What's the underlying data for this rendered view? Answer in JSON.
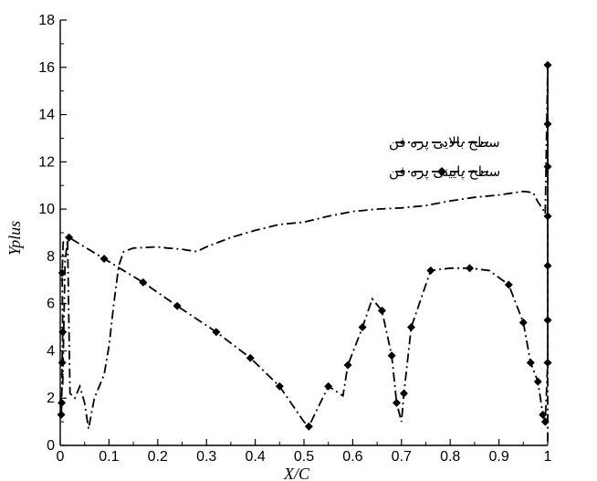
{
  "chart_data": {
    "type": "line",
    "title": "",
    "xlabel": "X/C",
    "ylabel": "Yplus",
    "xlim": [
      0,
      1
    ],
    "ylim": [
      0,
      18
    ],
    "xticks": [
      "0",
      "0.1",
      "0.2",
      "0.3",
      "0.4",
      "0.5",
      "0.6",
      "0.7",
      "0.8",
      "0.9",
      "1"
    ],
    "yticks": [
      "0",
      "2",
      "4",
      "6",
      "8",
      "10",
      "12",
      "14",
      "16",
      "18"
    ],
    "grid": false,
    "legend_position": "upper-center",
    "series": [
      {
        "name": "سطح بالایی پره فن",
        "line_style": "dash-dot",
        "marker": "none",
        "color": "#000000",
        "points": [
          [
            0.0,
            1.8
          ],
          [
            0.005,
            2.6
          ],
          [
            0.01,
            7.8
          ],
          [
            0.015,
            8.7
          ],
          [
            0.02,
            2.2
          ],
          [
            0.03,
            2.0
          ],
          [
            0.04,
            2.5
          ],
          [
            0.05,
            1.8
          ],
          [
            0.058,
            0.7
          ],
          [
            0.07,
            2.0
          ],
          [
            0.09,
            3.0
          ],
          [
            0.1,
            4.2
          ],
          [
            0.11,
            6.0
          ],
          [
            0.12,
            7.6
          ],
          [
            0.13,
            8.2
          ],
          [
            0.15,
            8.35
          ],
          [
            0.2,
            8.4
          ],
          [
            0.22,
            8.35
          ],
          [
            0.25,
            8.3
          ],
          [
            0.28,
            8.2
          ],
          [
            0.3,
            8.4
          ],
          [
            0.35,
            8.8
          ],
          [
            0.4,
            9.1
          ],
          [
            0.45,
            9.35
          ],
          [
            0.5,
            9.45
          ],
          [
            0.55,
            9.7
          ],
          [
            0.6,
            9.9
          ],
          [
            0.65,
            10.0
          ],
          [
            0.7,
            10.05
          ],
          [
            0.75,
            10.15
          ],
          [
            0.8,
            10.35
          ],
          [
            0.85,
            10.5
          ],
          [
            0.9,
            10.6
          ],
          [
            0.95,
            10.75
          ],
          [
            0.97,
            10.7
          ],
          [
            0.98,
            10.3
          ],
          [
            0.99,
            10.0
          ],
          [
            0.995,
            9.8
          ],
          [
            1.0,
            16.0
          ],
          [
            1.0,
            0.1
          ]
        ]
      },
      {
        "name": "سطح پایینی پره فن",
        "line_style": "dash-dot",
        "marker": "diamond",
        "color": "#000000",
        "points": [
          [
            0.002,
            1.3
          ],
          [
            0.003,
            1.8
          ],
          [
            0.004,
            3.5
          ],
          [
            0.005,
            4.8
          ],
          [
            0.004,
            7.3
          ],
          [
            0.006,
            8.6
          ],
          [
            0.018,
            8.8
          ],
          [
            0.09,
            7.9
          ],
          [
            0.17,
            6.9
          ],
          [
            0.24,
            5.9
          ],
          [
            0.32,
            4.8
          ],
          [
            0.39,
            3.7
          ],
          [
            0.45,
            2.5
          ],
          [
            0.5,
            1.0
          ],
          [
            0.51,
            0.8
          ],
          [
            0.55,
            2.5
          ],
          [
            0.58,
            2.1
          ],
          [
            0.59,
            3.4
          ],
          [
            0.62,
            5.0
          ],
          [
            0.64,
            6.2
          ],
          [
            0.66,
            5.7
          ],
          [
            0.68,
            3.8
          ],
          [
            0.69,
            1.8
          ],
          [
            0.7,
            1.0
          ],
          [
            0.705,
            2.2
          ],
          [
            0.72,
            5.0
          ],
          [
            0.76,
            7.4
          ],
          [
            0.8,
            7.5
          ],
          [
            0.84,
            7.5
          ],
          [
            0.88,
            7.4
          ],
          [
            0.92,
            6.8
          ],
          [
            0.95,
            5.2
          ],
          [
            0.965,
            3.5
          ],
          [
            0.98,
            2.7
          ],
          [
            0.99,
            1.3
          ],
          [
            0.995,
            1.0
          ],
          [
            1.0,
            3.5
          ],
          [
            1.0,
            5.3
          ],
          [
            1.0,
            7.6
          ],
          [
            1.0,
            9.7
          ],
          [
            1.0,
            11.8
          ],
          [
            1.0,
            13.6
          ],
          [
            1.0,
            16.1
          ]
        ],
        "marker_points": [
          [
            0.002,
            1.3
          ],
          [
            0.003,
            1.8
          ],
          [
            0.004,
            3.5
          ],
          [
            0.005,
            4.8
          ],
          [
            0.004,
            7.3
          ],
          [
            0.018,
            8.8
          ],
          [
            0.09,
            7.9
          ],
          [
            0.17,
            6.9
          ],
          [
            0.24,
            5.9
          ],
          [
            0.32,
            4.8
          ],
          [
            0.39,
            3.7
          ],
          [
            0.45,
            2.5
          ],
          [
            0.51,
            0.8
          ],
          [
            0.55,
            2.5
          ],
          [
            0.59,
            3.4
          ],
          [
            0.62,
            5.0
          ],
          [
            0.66,
            5.7
          ],
          [
            0.68,
            3.8
          ],
          [
            0.69,
            1.8
          ],
          [
            0.705,
            2.2
          ],
          [
            0.72,
            5.0
          ],
          [
            0.76,
            7.4
          ],
          [
            0.84,
            7.5
          ],
          [
            0.92,
            6.8
          ],
          [
            0.95,
            5.2
          ],
          [
            0.965,
            3.5
          ],
          [
            0.98,
            2.7
          ],
          [
            0.99,
            1.3
          ],
          [
            0.995,
            1.0
          ],
          [
            1.0,
            3.5
          ],
          [
            1.0,
            5.3
          ],
          [
            1.0,
            7.6
          ],
          [
            1.0,
            9.7
          ],
          [
            1.0,
            11.8
          ],
          [
            1.0,
            13.6
          ],
          [
            1.0,
            16.1
          ]
        ]
      }
    ]
  }
}
